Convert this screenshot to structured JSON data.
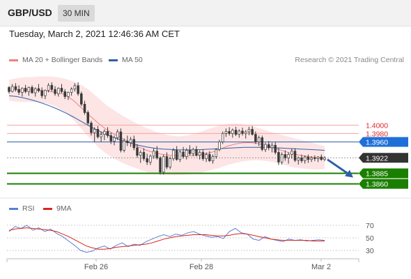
{
  "header": {
    "symbol": "GBP/USD",
    "timeframe": "30 MIN"
  },
  "timestamp": "Tuesday, March 2, 2021 12:46:36 AM CET",
  "legend": {
    "ma20": "MA 20 + Bollinger Bands",
    "ma50": "MA 50",
    "copyright": "Research © 2021 Trading Central"
  },
  "rsi_legend": {
    "rsi": "RSI",
    "ma9": "9MA"
  },
  "colors": {
    "candle": "#3a3a3a",
    "ma20": "#f08080",
    "band_fill": "#fde2e2",
    "ma50": "#2d5fa8",
    "level_red": "#f4a3a3",
    "level_blue": "#2d5fa8",
    "level_green": "#1a7f00",
    "badge_blue": "#1f6fd9",
    "badge_dark": "#333333",
    "badge_green": "#1a7f00",
    "rsi": "#5b7fd6",
    "rsi_ma": "#d9251d"
  },
  "chart_data": [
    {
      "type": "candlestick",
      "title": "GBP/USD",
      "subtitle": "30 MIN",
      "x_labels": [
        "Feb 26",
        "Feb 28",
        "Mar 2"
      ],
      "ylim": [
        1.3841,
        1.4137
      ],
      "levels": [
        {
          "value": 1.4,
          "label": "1.4000",
          "style": "resistance"
        },
        {
          "value": 1.398,
          "label": "1.3980",
          "style": "resistance"
        },
        {
          "value": 1.396,
          "label": "1.3960",
          "style": "pivot"
        },
        {
          "value": 1.3922,
          "label": "1.3922",
          "style": "last"
        },
        {
          "value": 1.3885,
          "label": "1.3885",
          "style": "support"
        },
        {
          "value": 1.386,
          "label": "1.3860",
          "style": "support"
        }
      ],
      "last_price": 1.3922,
      "forecast_arrow": {
        "from": 1.3918,
        "to": 1.3875
      },
      "candles_ohlc": [
        [
          1.409,
          1.4093,
          1.4075,
          1.408
        ],
        [
          1.408,
          1.4098,
          1.4078,
          1.4092
        ],
        [
          1.4092,
          1.41,
          1.408,
          1.4085
        ],
        [
          1.4085,
          1.4095,
          1.4072,
          1.4078
        ],
        [
          1.4078,
          1.409,
          1.4068,
          1.4088
        ],
        [
          1.4088,
          1.4096,
          1.4076,
          1.408
        ],
        [
          1.408,
          1.4092,
          1.407,
          1.409
        ],
        [
          1.409,
          1.4095,
          1.4075,
          1.4077
        ],
        [
          1.4077,
          1.409,
          1.4068,
          1.4087
        ],
        [
          1.4087,
          1.4098,
          1.4078,
          1.4082
        ],
        [
          1.4082,
          1.409,
          1.4064,
          1.407
        ],
        [
          1.407,
          1.4085,
          1.4062,
          1.4083
        ],
        [
          1.4083,
          1.41,
          1.4078,
          1.4095
        ],
        [
          1.4095,
          1.4102,
          1.408,
          1.4085
        ],
        [
          1.4085,
          1.4093,
          1.407,
          1.4075
        ],
        [
          1.4075,
          1.409,
          1.4068,
          1.4088
        ],
        [
          1.4088,
          1.4098,
          1.4076,
          1.408
        ],
        [
          1.408,
          1.4086,
          1.4062,
          1.4068
        ],
        [
          1.4068,
          1.408,
          1.406,
          1.4078
        ],
        [
          1.4078,
          1.409,
          1.407,
          1.4086
        ],
        [
          1.4086,
          1.41,
          1.408,
          1.4094
        ],
        [
          1.4094,
          1.4102,
          1.407,
          1.4075
        ],
        [
          1.4075,
          1.408,
          1.4045,
          1.405
        ],
        [
          1.405,
          1.4058,
          1.4025,
          1.403
        ],
        [
          1.403,
          1.4035,
          1.4,
          1.4005
        ],
        [
          1.4005,
          1.401,
          1.3975,
          1.3982
        ],
        [
          1.3982,
          1.3995,
          1.396,
          1.399
        ],
        [
          1.399,
          1.3998,
          1.3968,
          1.3972
        ],
        [
          1.3972,
          1.3985,
          1.396,
          1.3978
        ],
        [
          1.3978,
          1.399,
          1.3964,
          1.3985
        ],
        [
          1.3985,
          1.3995,
          1.397,
          1.3975
        ],
        [
          1.3975,
          1.3982,
          1.3955,
          1.3962
        ],
        [
          1.3962,
          1.3975,
          1.3952,
          1.397
        ],
        [
          1.397,
          1.399,
          1.3965,
          1.3984
        ],
        [
          1.3984,
          1.3992,
          1.3935,
          1.394
        ],
        [
          1.394,
          1.3968,
          1.3935,
          1.3962
        ],
        [
          1.3962,
          1.3975,
          1.395,
          1.3958
        ],
        [
          1.3958,
          1.3972,
          1.3948,
          1.3966
        ],
        [
          1.3966,
          1.3975,
          1.394,
          1.3946
        ],
        [
          1.3946,
          1.3955,
          1.3922,
          1.3928
        ],
        [
          1.3928,
          1.394,
          1.391,
          1.3935
        ],
        [
          1.3935,
          1.3945,
          1.3915,
          1.392
        ],
        [
          1.392,
          1.3932,
          1.3905,
          1.3912
        ],
        [
          1.3912,
          1.393,
          1.3905,
          1.3926
        ],
        [
          1.3926,
          1.3945,
          1.392,
          1.3938
        ],
        [
          1.3938,
          1.395,
          1.3918,
          1.3922
        ],
        [
          1.3922,
          1.3926,
          1.3882,
          1.3888
        ],
        [
          1.3888,
          1.393,
          1.3882,
          1.3925
        ],
        [
          1.3925,
          1.3935,
          1.3895,
          1.39
        ],
        [
          1.39,
          1.3925,
          1.3895,
          1.392
        ],
        [
          1.392,
          1.3945,
          1.3915,
          1.394
        ],
        [
          1.394,
          1.395,
          1.3915,
          1.3918
        ],
        [
          1.3918,
          1.394,
          1.3912,
          1.3936
        ],
        [
          1.3936,
          1.3948,
          1.392,
          1.3925
        ],
        [
          1.3925,
          1.3945,
          1.3918,
          1.394
        ],
        [
          1.394,
          1.3952,
          1.3928,
          1.3932
        ],
        [
          1.3932,
          1.3946,
          1.3926,
          1.3942
        ],
        [
          1.3942,
          1.395,
          1.3925,
          1.3928
        ],
        [
          1.3928,
          1.394,
          1.3918,
          1.3935
        ],
        [
          1.3935,
          1.3942,
          1.3915,
          1.392
        ],
        [
          1.392,
          1.3935,
          1.3912,
          1.393
        ],
        [
          1.393,
          1.3938,
          1.3912,
          1.3915
        ],
        [
          1.3915,
          1.393,
          1.3908,
          1.3925
        ],
        [
          1.3925,
          1.3945,
          1.392,
          1.3942
        ],
        [
          1.3942,
          1.3965,
          1.3938,
          1.396
        ],
        [
          1.396,
          1.3985,
          1.3955,
          1.398
        ],
        [
          1.398,
          1.3992,
          1.3972,
          1.3985
        ],
        [
          1.3985,
          1.3995,
          1.3975,
          1.398
        ],
        [
          1.398,
          1.3992,
          1.397,
          1.3988
        ],
        [
          1.3988,
          1.3996,
          1.3974,
          1.3978
        ],
        [
          1.3978,
          1.399,
          1.397,
          1.3986
        ],
        [
          1.3986,
          1.3994,
          1.3975,
          1.398
        ],
        [
          1.398,
          1.3988,
          1.3968,
          1.3984
        ],
        [
          1.3984,
          1.3996,
          1.3976,
          1.399
        ],
        [
          1.399,
          1.3998,
          1.3975,
          1.3978
        ],
        [
          1.3978,
          1.3985,
          1.3955,
          1.396
        ],
        [
          1.396,
          1.3975,
          1.395,
          1.397
        ],
        [
          1.397,
          1.3975,
          1.3938,
          1.3942
        ],
        [
          1.3942,
          1.3958,
          1.3936,
          1.3954
        ],
        [
          1.3954,
          1.3962,
          1.394,
          1.3946
        ],
        [
          1.3946,
          1.3958,
          1.3935,
          1.3952
        ],
        [
          1.3952,
          1.396,
          1.393,
          1.3935
        ],
        [
          1.3935,
          1.3945,
          1.3905,
          1.3912
        ],
        [
          1.3912,
          1.3935,
          1.3906,
          1.393
        ],
        [
          1.393,
          1.394,
          1.3915,
          1.3922
        ],
        [
          1.3922,
          1.3935,
          1.3908,
          1.393
        ],
        [
          1.393,
          1.3945,
          1.392,
          1.3938
        ],
        [
          1.3938,
          1.3945,
          1.3912,
          1.3916
        ],
        [
          1.3916,
          1.3925,
          1.3906,
          1.3922
        ],
        [
          1.3922,
          1.393,
          1.391,
          1.3915
        ],
        [
          1.3915,
          1.3928,
          1.3908,
          1.3924
        ],
        [
          1.3924,
          1.393,
          1.391,
          1.3918
        ],
        [
          1.3918,
          1.3926,
          1.3912,
          1.3922
        ],
        [
          1.3922,
          1.3928,
          1.3914,
          1.392
        ],
        [
          1.392,
          1.3926,
          1.3912,
          1.3924
        ],
        [
          1.3924,
          1.393,
          1.3915,
          1.3918
        ],
        [
          1.3918,
          1.3926,
          1.3914,
          1.3922
        ]
      ],
      "series": [
        {
          "name": "MA 20 + Bollinger Bands",
          "ma": [
            1.4083,
            1.4084,
            1.4084,
            1.4084,
            1.4083,
            1.408,
            1.4078,
            1.4072,
            1.4058,
            1.404,
            1.4022,
            1.4005,
            1.399,
            1.3978,
            1.3968,
            1.3958,
            1.3948,
            1.394,
            1.3934,
            1.393,
            1.3928,
            1.3927,
            1.3927,
            1.3928,
            1.393,
            1.3935,
            1.3942,
            1.395,
            1.3955,
            1.3958,
            1.3958,
            1.3955,
            1.395,
            1.3944,
            1.3938,
            1.3932,
            1.3928,
            1.3925,
            1.3923,
            1.3922
          ],
          "upper": [
            1.4108,
            1.4112,
            1.4114,
            1.4115,
            1.4116,
            1.4116,
            1.4114,
            1.411,
            1.4104,
            1.4095,
            1.4082,
            1.4065,
            1.4048,
            1.4035,
            1.4023,
            1.4012,
            1.4002,
            1.3993,
            1.3985,
            1.3979,
            1.3975,
            1.3973,
            1.3975,
            1.398,
            1.3986,
            1.3993,
            1.3999,
            1.4003,
            1.4004,
            1.4002,
            1.3998,
            1.3992,
            1.3986,
            1.398,
            1.3975,
            1.397,
            1.3965,
            1.396,
            1.3955,
            1.395
          ],
          "lower": [
            1.4058,
            1.4056,
            1.4055,
            1.4055,
            1.4054,
            1.405,
            1.4042,
            1.403,
            1.4012,
            1.399,
            1.3968,
            1.3948,
            1.3932,
            1.392,
            1.391,
            1.3902,
            1.3895,
            1.3888,
            1.3884,
            1.3882,
            1.3881,
            1.3881,
            1.3882,
            1.3884,
            1.3888,
            1.3893,
            1.3898,
            1.3905,
            1.391,
            1.3914,
            1.3916,
            1.3916,
            1.3914,
            1.391,
            1.3905,
            1.39,
            1.3897,
            1.3895,
            1.3894,
            1.3895
          ]
        },
        {
          "name": "MA 50",
          "values": [
            1.407,
            1.4068,
            1.4064,
            1.4059,
            1.4053,
            1.4046,
            1.4038,
            1.4029,
            1.4019,
            1.4008,
            1.3997,
            1.3987,
            1.3978,
            1.397,
            1.3963,
            1.3957,
            1.3952,
            1.3948,
            1.3945,
            1.3943,
            1.3942,
            1.3941,
            1.3941,
            1.3941,
            1.3942,
            1.3943,
            1.3944,
            1.3945,
            1.3946,
            1.3947,
            1.3947,
            1.3947,
            1.3947,
            1.3946,
            1.3945,
            1.3944,
            1.3943,
            1.3942,
            1.3941,
            1.394
          ]
        }
      ]
    },
    {
      "type": "line",
      "legend": [
        "RSI",
        "9MA"
      ],
      "ylim": [
        20,
        80
      ],
      "y_ticks": [
        70,
        50,
        30
      ],
      "x_labels": [
        "Feb 26",
        "Feb 28",
        "Mar 2"
      ],
      "series": [
        {
          "name": "RSI",
          "values": [
            60,
            68,
            65,
            70,
            62,
            66,
            60,
            64,
            57,
            52,
            45,
            38,
            30,
            27,
            29,
            34,
            37,
            32,
            38,
            42,
            36,
            40,
            38,
            44,
            48,
            52,
            55,
            52,
            56,
            54,
            58,
            60,
            56,
            53,
            51,
            52,
            49,
            60,
            65,
            58,
            56,
            48,
            46,
            52,
            48,
            46,
            44,
            48,
            46,
            47,
            45,
            46,
            47,
            46
          ]
        },
        {
          "name": "9MA",
          "values": [
            62,
            64,
            65,
            66,
            65,
            64,
            63,
            62,
            60,
            56,
            52,
            47,
            42,
            37,
            34,
            32,
            32,
            33,
            35,
            36,
            37,
            38,
            39,
            40,
            42,
            45,
            48,
            50,
            52,
            53,
            54,
            55,
            55,
            55,
            54,
            53,
            53,
            54,
            56,
            57,
            56,
            54,
            52,
            50,
            48,
            47,
            46,
            46,
            46,
            46,
            46,
            45,
            45,
            45
          ]
        }
      ]
    }
  ]
}
